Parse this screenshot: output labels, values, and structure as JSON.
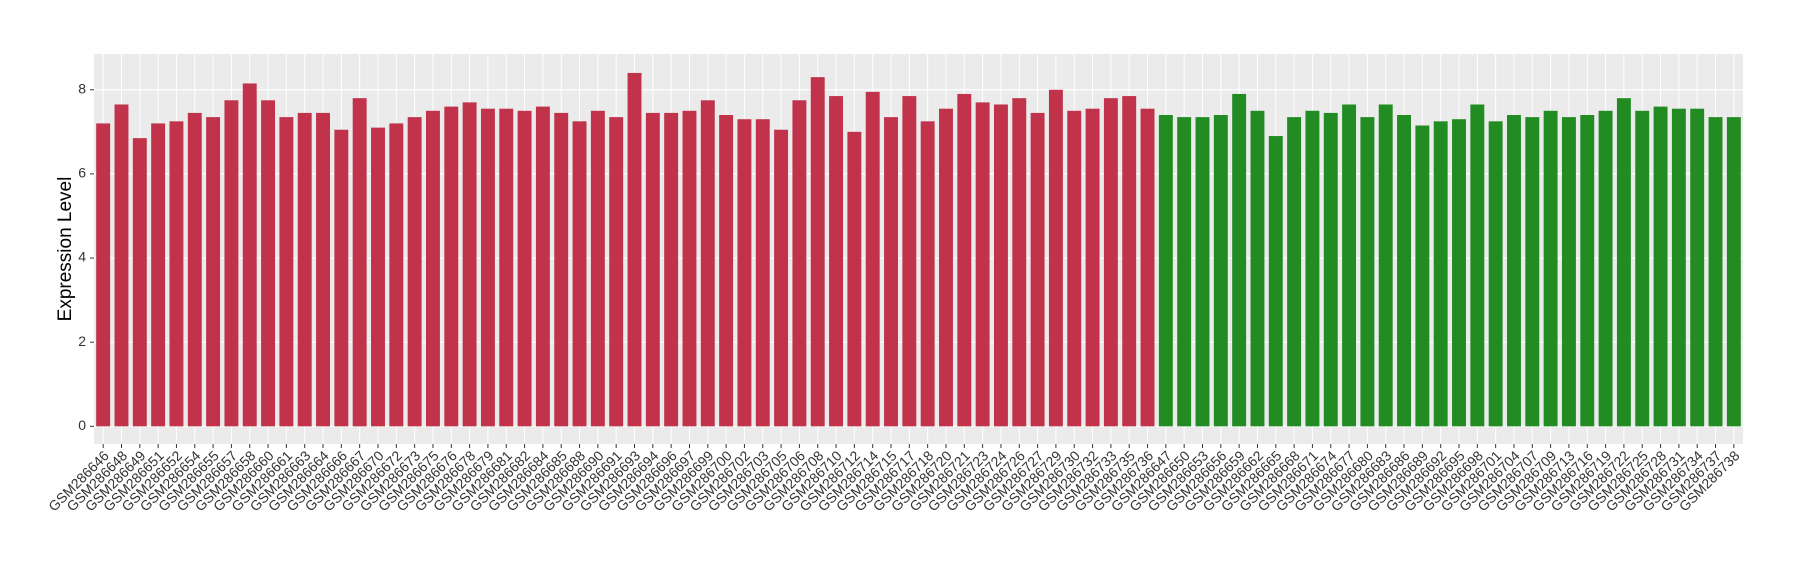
{
  "chart_data": {
    "type": "bar",
    "y_label": "Expression Level",
    "ylim": [
      -0.42,
      8.85
    ],
    "yticks": [
      0,
      2,
      4,
      6,
      8
    ],
    "grid": true,
    "categories": [
      "GSM286646",
      "GSM286648",
      "GSM286649",
      "GSM286651",
      "GSM286652",
      "GSM286654",
      "GSM286655",
      "GSM286657",
      "GSM286658",
      "GSM286660",
      "GSM286661",
      "GSM286663",
      "GSM286664",
      "GSM286666",
      "GSM286667",
      "GSM286670",
      "GSM286672",
      "GSM286673",
      "GSM286675",
      "GSM286676",
      "GSM286678",
      "GSM286679",
      "GSM286681",
      "GSM286682",
      "GSM286684",
      "GSM286685",
      "GSM286688",
      "GSM286690",
      "GSM286691",
      "GSM286693",
      "GSM286694",
      "GSM286696",
      "GSM286697",
      "GSM286699",
      "GSM286700",
      "GSM286702",
      "GSM286703",
      "GSM286705",
      "GSM286706",
      "GSM286708",
      "GSM286710",
      "GSM286712",
      "GSM286714",
      "GSM286715",
      "GSM286717",
      "GSM286718",
      "GSM286720",
      "GSM286721",
      "GSM286723",
      "GSM286724",
      "GSM286726",
      "GSM286727",
      "GSM286729",
      "GSM286730",
      "GSM286732",
      "GSM286733",
      "GSM286735",
      "GSM286736",
      "GSM286647",
      "GSM286650",
      "GSM286653",
      "GSM286656",
      "GSM286659",
      "GSM286662",
      "GSM286665",
      "GSM286668",
      "GSM286671",
      "GSM286674",
      "GSM286677",
      "GSM286680",
      "GSM286683",
      "GSM286686",
      "GSM286689",
      "GSM286692",
      "GSM286695",
      "GSM286698",
      "GSM286701",
      "GSM286704",
      "GSM286707",
      "GSM286709",
      "GSM286713",
      "GSM286716",
      "GSM286719",
      "GSM286722",
      "GSM286725",
      "GSM286728",
      "GSM286731",
      "GSM286734",
      "GSM286737",
      "GSM286738"
    ],
    "values": [
      7.2,
      7.65,
      6.85,
      7.2,
      7.25,
      7.45,
      7.35,
      7.75,
      8.15,
      7.75,
      7.35,
      7.45,
      7.45,
      7.05,
      7.8,
      7.1,
      7.2,
      7.35,
      7.5,
      7.6,
      7.7,
      7.55,
      7.55,
      7.5,
      7.6,
      7.45,
      7.25,
      7.5,
      7.35,
      8.4,
      7.45,
      7.45,
      7.5,
      7.75,
      7.4,
      7.3,
      7.3,
      7.05,
      7.75,
      8.3,
      7.85,
      7.0,
      7.95,
      7.35,
      7.85,
      7.25,
      7.55,
      7.9,
      7.7,
      7.65,
      7.8,
      7.45,
      8.0,
      7.5,
      7.55,
      7.8,
      7.85,
      7.55,
      7.4,
      7.35,
      7.35,
      7.4,
      7.9,
      7.5,
      6.9,
      7.35,
      7.5,
      7.45,
      7.65,
      7.35,
      7.65,
      7.4,
      7.15,
      7.25,
      7.3,
      7.65,
      7.25,
      7.4,
      7.35,
      7.5,
      7.35,
      7.4,
      7.5,
      7.8,
      7.5,
      7.6,
      7.55,
      7.55,
      7.35,
      7.35
    ],
    "groups": [
      {
        "color": "#c0334a",
        "count": 58
      },
      {
        "color": "#228b22",
        "count": 32
      }
    ]
  }
}
